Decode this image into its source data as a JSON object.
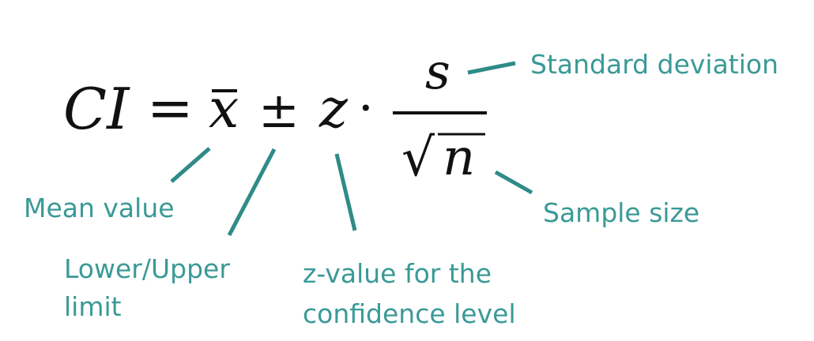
{
  "formula": {
    "ci": "CI",
    "equals": "=",
    "mean_symbol": "x",
    "bar": "¯",
    "plus_minus": "±",
    "z": "z",
    "dot": "·",
    "numerator": "s",
    "radical": "√",
    "denominator": "n"
  },
  "labels": {
    "standard_deviation": "Standard deviation",
    "mean_value": "Mean value",
    "sample_size": "Sample size",
    "lower_upper_line1": "Lower/Upper",
    "lower_upper_line2": "limit",
    "z_value_line1": "z-value for the",
    "z_value_line2": "confidence level"
  },
  "colors": {
    "label_text": "#3a9a96",
    "leader_line": "#2f8b87",
    "formula_text": "#111111"
  }
}
